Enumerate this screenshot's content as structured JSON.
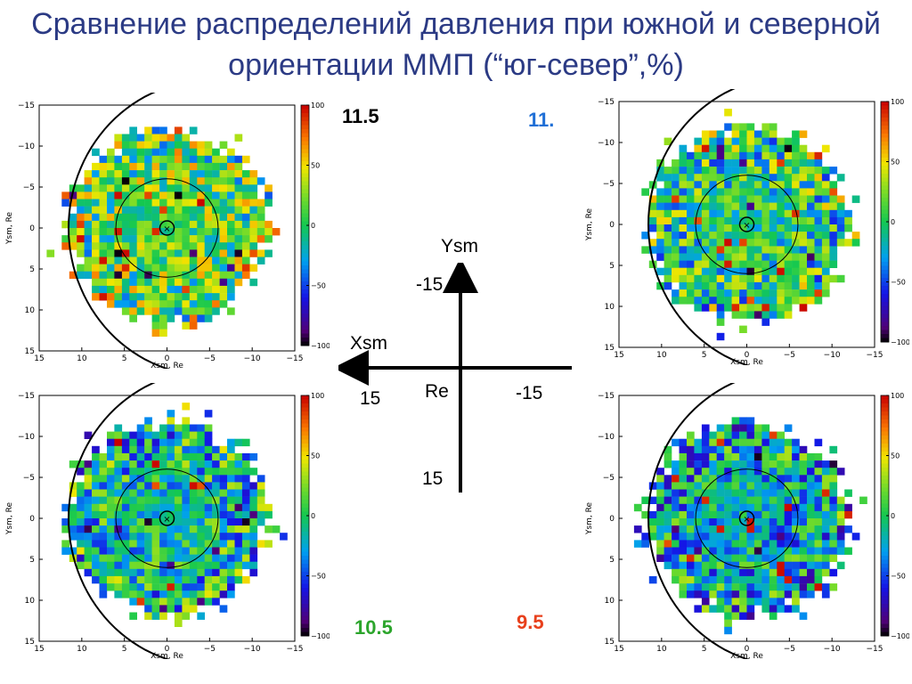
{
  "title": "Сравнение распределений давления при южной и северной ориентации ММП (“юг-север”,%)",
  "colors": {
    "title": "#2b3a84",
    "label_black": "#000000",
    "label_blue": "#1f6fd6",
    "label_green": "#2ca52c",
    "label_red": "#e8401c"
  },
  "panel_labels": [
    {
      "text": "11.5",
      "color": "#000000"
    },
    {
      "text": "11.",
      "color": "#1f6fd6"
    },
    {
      "text": "10.5",
      "color": "#2ca52c"
    },
    {
      "text": "9.5",
      "color": "#e8401c"
    }
  ],
  "coordinate_diagram": {
    "y_axis_label": "Ysm",
    "x_axis_label": "Xsm",
    "center_label": "Re",
    "y_top_value": "-15",
    "y_bottom_value": "15",
    "x_left_value": "15",
    "x_right_value": "-15"
  },
  "chart_data": [
    {
      "type": "heatmap",
      "panel": "top-left",
      "xlabel": "Xsm, Re",
      "ylabel": "Ysm, Re",
      "x_ticks": [
        "15",
        "10",
        "5",
        "0",
        "−5",
        "−10",
        "−15"
      ],
      "y_ticks": [
        "−15",
        "−10",
        "−5",
        "0",
        "5",
        "10",
        "15"
      ],
      "xlim": [
        15,
        -15
      ],
      "ylim": [
        -15,
        15
      ],
      "colorbar_ticks": [
        "100",
        "50",
        "0",
        "−50",
        "−100"
      ],
      "colorbar_range": [
        -100,
        100
      ],
      "colorscale": "rainbow",
      "inner_circle_radius_re": 6,
      "boundary_arc": true
    },
    {
      "type": "heatmap",
      "panel": "top-right",
      "xlabel": "Xsm, Re",
      "ylabel": "Ysm, Re",
      "x_ticks": [
        "15",
        "10",
        "5",
        "0",
        "−5",
        "−10",
        "−15"
      ],
      "y_ticks": [
        "−15",
        "−10",
        "−5",
        "0",
        "5",
        "10",
        "15"
      ],
      "xlim": [
        15,
        -15
      ],
      "ylim": [
        -15,
        15
      ],
      "colorbar_ticks": [
        "100",
        "50",
        "0",
        "−50",
        "−100"
      ],
      "colorbar_range": [
        -100,
        100
      ],
      "colorscale": "rainbow",
      "inner_circle_radius_re": 6,
      "boundary_arc": true
    },
    {
      "type": "heatmap",
      "panel": "bottom-left",
      "xlabel": "Xsm, Re",
      "ylabel": "Ysm, Re",
      "x_ticks": [
        "15",
        "10",
        "5",
        "0",
        "−5",
        "−10",
        "−15"
      ],
      "y_ticks": [
        "−15",
        "−10",
        "−5",
        "0",
        "5",
        "10",
        "15"
      ],
      "xlim": [
        15,
        -15
      ],
      "ylim": [
        -15,
        15
      ],
      "colorbar_ticks": [
        "100",
        "50",
        "0",
        "−50",
        "−100"
      ],
      "colorbar_range": [
        -100,
        100
      ],
      "colorscale": "rainbow",
      "inner_circle_radius_re": 6,
      "boundary_arc": true
    },
    {
      "type": "heatmap",
      "panel": "bottom-right",
      "xlabel": "Xsm, Re",
      "ylabel": "Ysm, Re",
      "x_ticks": [
        "15",
        "10",
        "5",
        "0",
        "−5",
        "−10",
        "−15"
      ],
      "y_ticks": [
        "−15",
        "−10",
        "−5",
        "0",
        "5",
        "10",
        "15"
      ],
      "xlim": [
        15,
        -15
      ],
      "ylim": [
        -15,
        15
      ],
      "colorbar_ticks": [
        "100",
        "50",
        "0",
        "−50",
        "−100"
      ],
      "colorbar_range": [
        -100,
        100
      ],
      "colorscale": "rainbow",
      "inner_circle_radius_re": 6,
      "boundary_arc": true
    }
  ]
}
